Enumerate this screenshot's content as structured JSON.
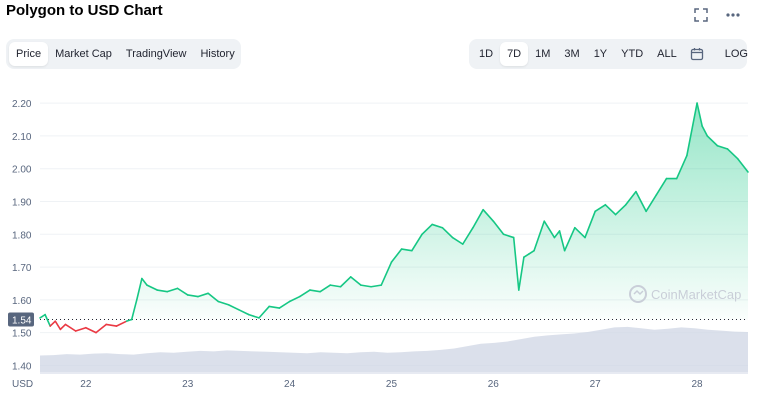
{
  "header": {
    "title": "Polygon to USD Chart",
    "fullscreen_icon": "fullscreen-icon",
    "more_icon": "more-icon"
  },
  "tabs": [
    {
      "label": "Price",
      "active": true
    },
    {
      "label": "Market Cap",
      "active": false
    },
    {
      "label": "TradingView",
      "active": false
    },
    {
      "label": "History",
      "active": false
    }
  ],
  "ranges": [
    {
      "label": "1D",
      "active": false
    },
    {
      "label": "7D",
      "active": true
    },
    {
      "label": "1M",
      "active": false
    },
    {
      "label": "3M",
      "active": false
    },
    {
      "label": "1Y",
      "active": false
    },
    {
      "label": "YTD",
      "active": false
    },
    {
      "label": "ALL",
      "active": false
    }
  ],
  "calendar_icon": "calendar-icon",
  "log_label": "LOG",
  "watermark": "CoinMarketCap",
  "colors": {
    "up": "#16c784",
    "down": "#ea3943",
    "volume": "#cfd6e4",
    "accent": "#3861fb"
  },
  "chart_data": {
    "type": "line",
    "currency_label": "USD",
    "y_ticks": [
      "2.20",
      "2.10",
      "2.00",
      "1.90",
      "1.80",
      "1.70",
      "1.60",
      "1.50",
      "1.40"
    ],
    "x_ticks": [
      "22",
      "23",
      "24",
      "25",
      "26",
      "27",
      "28"
    ],
    "ylim": [
      1.38,
      2.24
    ],
    "xlim": [
      21.55,
      28.5
    ],
    "reference_price": 1.54,
    "reference_label": "1.54",
    "series": [
      {
        "x": [
          21.55,
          21.6,
          21.65,
          21.7,
          21.75,
          21.8,
          21.9,
          22.0,
          22.1,
          22.2,
          22.3,
          22.4,
          22.45,
          22.5,
          22.55,
          22.6,
          22.7,
          22.8,
          22.9,
          23.0,
          23.1,
          23.2,
          23.3,
          23.4,
          23.5,
          23.6,
          23.7,
          23.8,
          23.9,
          24.0,
          24.1,
          24.2,
          24.3,
          24.4,
          24.5,
          24.6,
          24.7,
          24.8,
          24.9,
          25.0,
          25.1,
          25.2,
          25.3,
          25.4,
          25.5,
          25.6,
          25.7,
          25.8,
          25.9,
          26.0,
          26.1,
          26.2,
          26.25,
          26.3,
          26.35,
          26.4,
          26.5,
          26.6,
          26.65,
          26.7,
          26.8,
          26.9,
          27.0,
          27.1,
          27.2,
          27.3,
          27.4,
          27.5,
          27.6,
          27.7,
          27.8,
          27.9,
          28.0,
          28.05,
          28.1,
          28.2,
          28.3,
          28.4,
          28.5
        ],
        "y": [
          1.545,
          1.555,
          1.52,
          1.535,
          1.51,
          1.525,
          1.505,
          1.515,
          1.5,
          1.525,
          1.52,
          1.535,
          1.54,
          1.6,
          1.665,
          1.645,
          1.63,
          1.625,
          1.635,
          1.615,
          1.61,
          1.62,
          1.595,
          1.585,
          1.57,
          1.555,
          1.545,
          1.58,
          1.575,
          1.595,
          1.61,
          1.63,
          1.625,
          1.645,
          1.64,
          1.67,
          1.645,
          1.64,
          1.645,
          1.715,
          1.755,
          1.75,
          1.8,
          1.83,
          1.82,
          1.79,
          1.77,
          1.82,
          1.875,
          1.84,
          1.8,
          1.79,
          1.63,
          1.73,
          1.74,
          1.75,
          1.84,
          1.79,
          1.81,
          1.75,
          1.82,
          1.79,
          1.87,
          1.89,
          1.86,
          1.89,
          1.93,
          1.87,
          1.92,
          1.97,
          1.97,
          2.04,
          2.2,
          2.13,
          2.1,
          2.07,
          2.06,
          2.03,
          1.99
        ]
      }
    ],
    "volume": [
      0.35,
      0.36,
      0.38,
      0.37,
      0.39,
      0.4,
      0.38,
      0.37,
      0.4,
      0.42,
      0.41,
      0.43,
      0.45,
      0.44,
      0.46,
      0.45,
      0.44,
      0.43,
      0.42,
      0.41,
      0.4,
      0.42,
      0.41,
      0.4,
      0.42,
      0.43,
      0.41,
      0.42,
      0.44,
      0.45,
      0.47,
      0.5,
      0.55,
      0.6,
      0.62,
      0.65,
      0.7,
      0.75,
      0.78,
      0.8,
      0.82,
      0.85,
      0.9,
      0.95,
      0.96,
      0.93,
      0.9,
      0.92,
      0.95,
      0.93,
      0.9,
      0.88,
      0.86,
      0.85
    ]
  }
}
